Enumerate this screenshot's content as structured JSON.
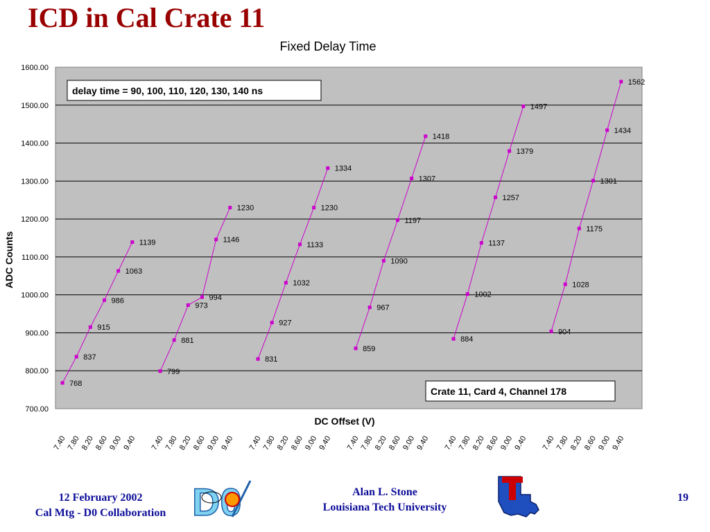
{
  "slide": {
    "title": "ICD in Cal Crate 11",
    "footer": {
      "date": "12 February 2002",
      "meeting": "Cal Mtg - D0 Collaboration",
      "author": "Alan L. Stone",
      "institution": "Louisiana Tech University",
      "page_number": "19"
    },
    "logos": {
      "d0": "D0",
      "latech": "T"
    }
  },
  "colors": {
    "series": "#cc00cc",
    "plot_bg": "#c0c0c0",
    "title": "#990000",
    "footer": "#0b0b99"
  },
  "chart_data": {
    "type": "line",
    "title": "Fixed Delay Time",
    "xlabel": "DC Offset (V)",
    "ylabel": "ADC Counts",
    "ylim": [
      700,
      1600
    ],
    "yticks": [
      "700.00",
      "800.00",
      "900.00",
      "1000.00",
      "1100.00",
      "1200.00",
      "1300.00",
      "1400.00",
      "1500.00",
      "1600.00"
    ],
    "grid": true,
    "legend": "none",
    "annotations": [
      "delay time = 90, 100, 110, 120, 130, 140 ns",
      "Crate 11, Card 4, Channel 178"
    ],
    "groups": [
      {
        "x": [
          "7.40",
          "7.80",
          "8.20",
          "8.60",
          "9.00",
          "9.40"
        ],
        "values": [
          768,
          837,
          915,
          986,
          1063,
          1139
        ]
      },
      {
        "x": [
          "7.40",
          "7.80",
          "8.20",
          "8.60",
          "9.00",
          "9.40"
        ],
        "values": [
          799,
          881,
          973,
          994,
          1146,
          1230
        ]
      },
      {
        "x": [
          "7.40",
          "7.80",
          "8.20",
          "8.60",
          "9.00",
          "9.40"
        ],
        "values": [
          831,
          927,
          1032,
          1133,
          1230,
          1334
        ]
      },
      {
        "x": [
          "7.40",
          "7.80",
          "8.20",
          "8.60",
          "9.00",
          "9.40"
        ],
        "values": [
          859,
          967,
          1090,
          1197,
          1307,
          1418
        ]
      },
      {
        "x": [
          "7.40",
          "7.80",
          "8.20",
          "8.60",
          "9.00",
          "9.40"
        ],
        "values": [
          884,
          1002,
          1137,
          1257,
          1379,
          1497
        ]
      },
      {
        "x": [
          "7.40",
          "7.80",
          "8.20",
          "8.60",
          "9.00",
          "9.40"
        ],
        "values": [
          904,
          1028,
          1175,
          1301,
          1434,
          1562
        ]
      }
    ]
  }
}
